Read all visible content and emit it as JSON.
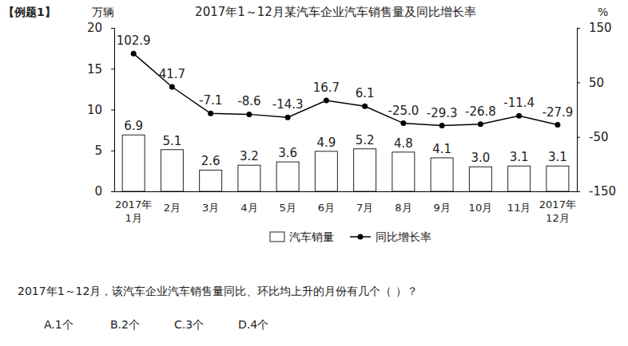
{
  "chart_data": {
    "type": "bar",
    "title": "2017年1～12月某汽车企业汽车销售量及同比增长率",
    "ylabel": "万辆",
    "y2label": "%",
    "annotations": [
      "【例题1】",
      "2017年1～12月，该汽车企业汽车销售量同比、环比均上升的月份有几个（ ）？",
      "A.1个",
      "B.2个",
      "C.3个",
      "D.4个"
    ],
    "categories": [
      "2017年1月",
      "2月",
      "3月",
      "4月",
      "5月",
      "6月",
      "7月",
      "8月",
      "9月",
      "10月",
      "11月",
      "2017年12月"
    ],
    "series": [
      {
        "name": "汽车销量",
        "type": "bar",
        "color": "#ffffff",
        "values": [
          6.9,
          5.1,
          2.6,
          3.2,
          3.6,
          4.9,
          5.2,
          4.8,
          4.1,
          3.0,
          3.1,
          3.1
        ],
        "value_labels": [
          "6.9",
          "5.1",
          "2.6",
          "3.2",
          "3.6",
          "4.9",
          "5.2",
          "4.8",
          "4.1",
          "3.0",
          "3.1",
          "3.1"
        ]
      },
      {
        "name": "同比增长率",
        "type": "line",
        "axis": "y2",
        "color": "#000000",
        "marker": "circle",
        "values": [
          102.9,
          41.7,
          -7.1,
          -8.6,
          -14.3,
          16.7,
          6.1,
          -25.0,
          -29.3,
          -26.8,
          -11.4,
          -27.9
        ],
        "value_labels": [
          "102.9",
          "41.7",
          "-7.1",
          "-8.6",
          "-14.3",
          "16.7",
          "6.1",
          "-25.0",
          "-29.3",
          "-26.8",
          "-11.4",
          "-27.9"
        ]
      }
    ],
    "ylim": [
      0,
      20
    ],
    "yticks": [
      0,
      5,
      10,
      15,
      20
    ],
    "y2lim": [
      -150,
      150
    ],
    "y2ticks": [
      -150,
      -50,
      50,
      150
    ],
    "data_labels": true,
    "legend": "bottom",
    "grid": false
  }
}
